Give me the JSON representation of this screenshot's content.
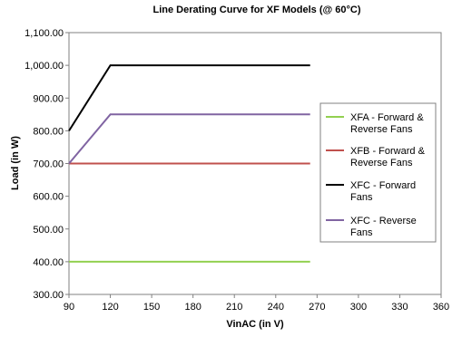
{
  "chart_data": {
    "type": "line",
    "title": "Line Derating Curve for XF Models (@ 60°C)",
    "xlabel": "VinAC (in V)",
    "ylabel": "Load (in W)",
    "xlim": [
      90,
      360
    ],
    "ylim": [
      300,
      1100
    ],
    "x_ticks": [
      90,
      120,
      150,
      180,
      210,
      240,
      270,
      300,
      330,
      360
    ],
    "y_ticks": [
      300,
      400,
      500,
      600,
      700,
      800,
      900,
      1000,
      1100
    ],
    "y_tick_labels": [
      "300.00",
      "400.00",
      "500.00",
      "600.00",
      "700.00",
      "800.00",
      "900.00",
      "1,000.00",
      "1,100.00"
    ],
    "grid": false,
    "legend_position": "right",
    "series": [
      {
        "name": "XFA - Forward & Reverse Fans",
        "color": "#92d050",
        "points": [
          [
            90,
            400
          ],
          [
            120,
            400
          ],
          [
            265,
            400
          ]
        ]
      },
      {
        "name": "XFB - Forward & Reverse Fans",
        "color": "#c0504d",
        "points": [
          [
            90,
            700
          ],
          [
            120,
            700
          ],
          [
            265,
            700
          ]
        ]
      },
      {
        "name": "XFC - Forward Fans",
        "color": "#000000",
        "points": [
          [
            90,
            800
          ],
          [
            120,
            1000
          ],
          [
            265,
            1000
          ]
        ]
      },
      {
        "name": "XFC - Reverse Fans",
        "color": "#8064a2",
        "points": [
          [
            90,
            700
          ],
          [
            120,
            850
          ],
          [
            265,
            850
          ]
        ]
      }
    ]
  }
}
